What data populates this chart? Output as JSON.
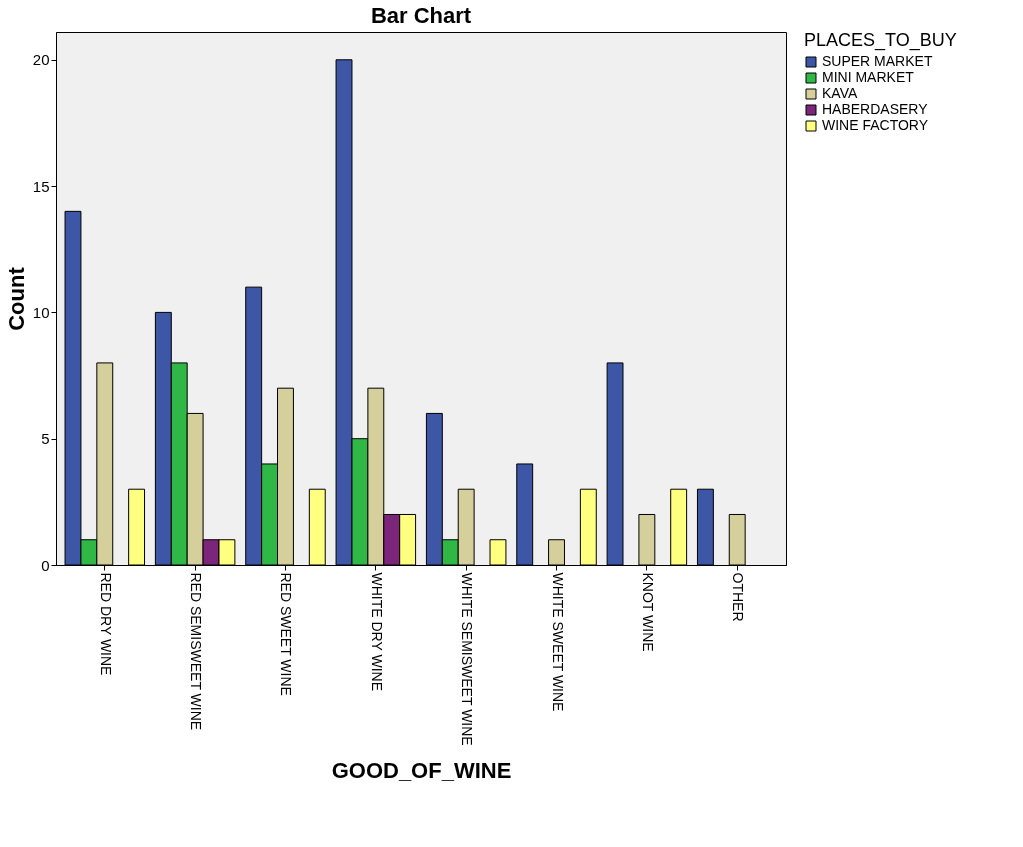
{
  "chart_data": {
    "type": "bar",
    "title": "Bar Chart",
    "xlabel": "GOOD_OF_WINE",
    "ylabel": "Count",
    "legend_title": "PLACES_TO_BUY",
    "categories": [
      "RED DRY WINE",
      "RED SEMISWEET WINE",
      "RED SWEET WINE",
      "WHITE DRY WINE",
      "WHITE SEMISWEET WINE",
      "WHITE SWEET WINE",
      "KNOT WINE",
      "OTHER"
    ],
    "series": [
      {
        "name": "SUPER MARKET",
        "color": "#3d56a6",
        "values": [
          14,
          10,
          11,
          20,
          6,
          4,
          8,
          3
        ]
      },
      {
        "name": "MINI MARKET",
        "color": "#2fb845",
        "values": [
          1,
          8,
          4,
          5,
          1,
          null,
          null,
          null
        ]
      },
      {
        "name": "KAVA",
        "color": "#d4cf9b",
        "values": [
          8,
          6,
          7,
          7,
          3,
          1,
          2,
          2
        ]
      },
      {
        "name": "HABERDASERY",
        "color": "#7b267a",
        "values": [
          null,
          1,
          null,
          2,
          null,
          null,
          null,
          null
        ]
      },
      {
        "name": "WINE FACTORY",
        "color": "#ffff80",
        "values": [
          3,
          1,
          3,
          2,
          1,
          3,
          3,
          null
        ]
      }
    ],
    "ylim": [
      0,
      21.1
    ],
    "yticks": [
      0,
      5,
      10,
      15,
      20
    ],
    "grid": false,
    "legend": "top right"
  }
}
